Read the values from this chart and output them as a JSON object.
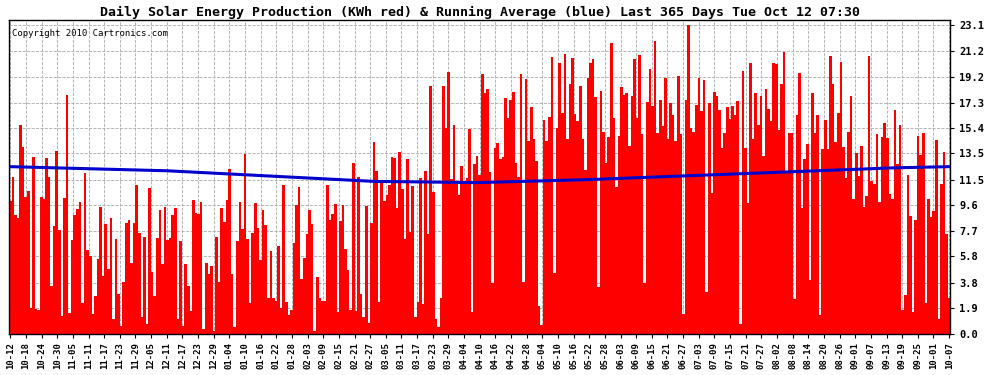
{
  "title": "Daily Solar Energy Production (KWh red) & Running Average (blue) Last 365 Days Tue Oct 12 07:30",
  "copyright": "Copyright 2010 Cartronics.com",
  "yticks": [
    0.0,
    1.9,
    3.8,
    5.8,
    7.7,
    9.6,
    11.5,
    13.5,
    15.4,
    17.3,
    19.2,
    21.2,
    23.1
  ],
  "ymax": 23.5,
  "bar_color": "#ff0000",
  "avg_color": "#0000cc",
  "bg_color": "#ffffff",
  "grid_color": "#aaaaaa",
  "num_days": 365,
  "xtick_labels": [
    "10-12",
    "10-18",
    "10-24",
    "10-30",
    "11-05",
    "11-11",
    "11-17",
    "11-23",
    "11-29",
    "12-05",
    "12-11",
    "12-17",
    "12-23",
    "12-29",
    "01-04",
    "01-10",
    "01-16",
    "01-22",
    "01-28",
    "02-03",
    "02-09",
    "02-15",
    "02-21",
    "02-27",
    "03-05",
    "03-11",
    "03-17",
    "03-23",
    "03-29",
    "04-04",
    "04-10",
    "04-16",
    "04-22",
    "04-28",
    "05-04",
    "05-10",
    "05-16",
    "05-22",
    "05-28",
    "06-03",
    "06-09",
    "06-15",
    "06-21",
    "06-27",
    "07-03",
    "07-09",
    "07-15",
    "07-21",
    "07-27",
    "08-02",
    "08-08",
    "08-14",
    "08-20",
    "08-26",
    "09-01",
    "09-07",
    "09-13",
    "09-19",
    "09-25",
    "10-01",
    "10-07"
  ],
  "avg_control_points": [
    [
      0,
      12.5
    ],
    [
      60,
      12.2
    ],
    [
      100,
      11.8
    ],
    [
      140,
      11.4
    ],
    [
      180,
      11.3
    ],
    [
      220,
      11.5
    ],
    [
      260,
      11.8
    ],
    [
      300,
      12.1
    ],
    [
      340,
      12.4
    ],
    [
      364,
      12.5
    ]
  ]
}
